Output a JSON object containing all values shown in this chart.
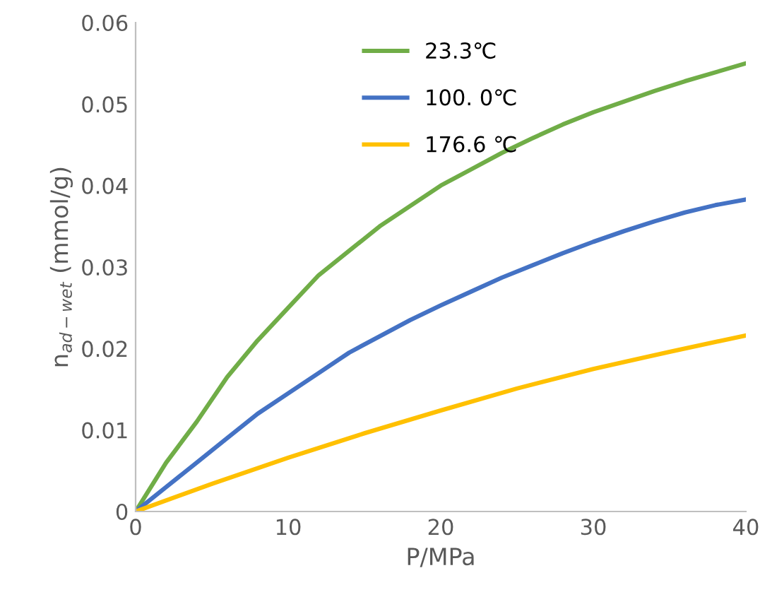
{
  "chart_data": {
    "type": "line",
    "xlabel": "P/MPa",
    "ylabel": "n$_{ad−wet}$ (mmol/g)",
    "xlim": [
      0,
      40
    ],
    "xticks": [
      0,
      10,
      20,
      30,
      40
    ],
    "ylim": [
      0,
      0.06
    ],
    "yticks": [
      {
        "value": 0,
        "label": "0"
      },
      {
        "value": 0.01,
        "label": "0.01"
      },
      {
        "value": 0.02,
        "label": "0.02"
      },
      {
        "value": 0.03,
        "label": "0.03"
      },
      {
        "value": 0.04,
        "label": "0.04"
      },
      {
        "value": 0.05,
        "label": "0.05"
      },
      {
        "value": 0.06,
        "label": "0.06"
      }
    ],
    "grid": false,
    "legend": "top",
    "marker": "none",
    "line_style": "solid",
    "series": [
      {
        "name": "23.3℃",
        "color": "#70ad47",
        "x": [
          0,
          2,
          4,
          6,
          8,
          10,
          12,
          14,
          16,
          18,
          20,
          22,
          24,
          26,
          28,
          30,
          32,
          34,
          36,
          38,
          40
        ],
        "values": [
          0,
          0.006,
          0.011,
          0.0165,
          0.021,
          0.025,
          0.029,
          0.032,
          0.035,
          0.0375,
          0.04,
          0.042,
          0.044,
          0.0458,
          0.0475,
          0.049,
          0.0503,
          0.0516,
          0.0528,
          0.0539,
          0.055
        ]
      },
      {
        "name": "100. 0℃",
        "color": "#4472c4",
        "x": [
          0,
          2,
          4,
          6,
          8,
          10,
          12,
          14,
          16,
          18,
          20,
          22,
          24,
          26,
          28,
          30,
          32,
          34,
          36,
          38,
          40
        ],
        "values": [
          0,
          0.003,
          0.006,
          0.009,
          0.012,
          0.0145,
          0.017,
          0.0195,
          0.0215,
          0.0235,
          0.0253,
          0.027,
          0.0287,
          0.0302,
          0.0317,
          0.0331,
          0.0344,
          0.0356,
          0.0367,
          0.0376,
          0.0383
        ]
      },
      {
        "name": "176.6 ℃",
        "color": "#ffc000",
        "x": [
          0,
          5,
          10,
          15,
          20,
          25,
          30,
          35,
          40
        ],
        "values": [
          0,
          0.0034,
          0.0066,
          0.0096,
          0.0124,
          0.0151,
          0.0175,
          0.0196,
          0.0216
        ]
      }
    ]
  }
}
